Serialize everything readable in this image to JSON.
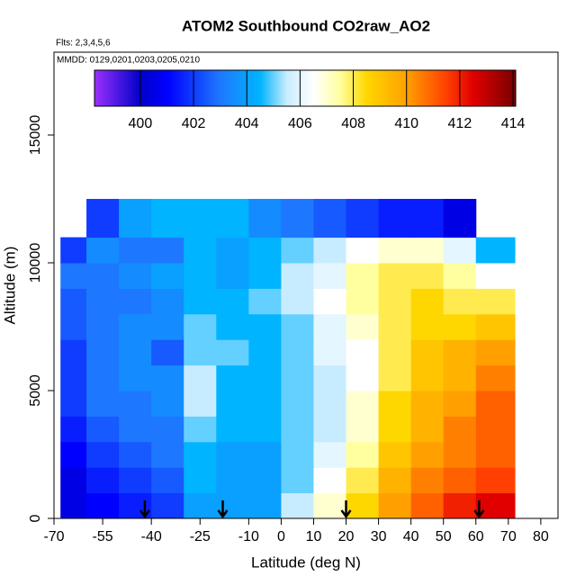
{
  "chart_data": {
    "type": "heatmap",
    "title": "ATOM2 Southbound CO2raw_AO2",
    "subtitle": "Flts: 2,3,4,5,6",
    "annotation": "MMDD: 0129,0201,0203,0205,0210",
    "xlabel": "Latitude (deg N)",
    "ylabel": "Altitude (m)",
    "xlim": [
      -70,
      85.3
    ],
    "ylim": [
      0,
      18240
    ],
    "xticks": [
      -70,
      -55,
      -40,
      -25,
      -10,
      0,
      10,
      20,
      30,
      40,
      50,
      60,
      70,
      80
    ],
    "yticks": [
      0,
      5000,
      10000,
      15000
    ],
    "xbins": [
      -68,
      -60,
      -50,
      -40,
      -30,
      -20,
      -10,
      0,
      10,
      20,
      30,
      40,
      50,
      60,
      72
    ],
    "ybins": [
      0,
      1000,
      2000,
      3000,
      4000,
      5000,
      6000,
      7000,
      8000,
      9000,
      10000,
      11000,
      12500
    ],
    "z": [
      [
        400.5,
        401,
        401.5,
        402,
        404,
        404,
        404,
        405.5,
        407,
        408.5,
        410,
        411,
        412,
        412.5
      ],
      [
        400.5,
        401.5,
        402,
        402.5,
        404.5,
        404,
        404,
        405,
        406.5,
        408,
        409.5,
        410.5,
        411,
        411.5
      ],
      [
        401,
        402,
        402.5,
        403,
        404.5,
        404,
        404,
        405,
        406,
        407.5,
        409,
        410,
        410.5,
        411
      ],
      [
        401.5,
        402.5,
        403,
        403,
        405,
        404.5,
        404.5,
        405,
        405.5,
        407,
        408.5,
        409.5,
        410.5,
        411
      ],
      [
        402,
        403,
        403,
        403.5,
        405.5,
        404.5,
        404.5,
        405,
        405.5,
        407,
        408.5,
        409.5,
        410,
        411
      ],
      [
        402,
        403,
        403.5,
        403.5,
        405.5,
        404.5,
        404.5,
        405,
        405.5,
        406.5,
        408,
        409,
        409.5,
        410.5
      ],
      [
        402,
        403,
        403.5,
        402.5,
        405,
        405,
        404.5,
        405,
        406,
        406.5,
        408,
        409,
        409.5,
        410
      ],
      [
        402.5,
        403,
        403.5,
        403.5,
        405,
        404.5,
        404.5,
        405,
        406,
        407,
        408,
        408.5,
        408.5,
        409
      ],
      [
        402.5,
        403,
        403,
        403.5,
        404.5,
        404.5,
        405,
        405.5,
        406.5,
        407.5,
        408,
        408.5,
        408,
        408
      ],
      [
        403,
        403,
        403.5,
        404,
        404.5,
        404,
        404.5,
        405.5,
        406,
        407.5,
        408,
        408,
        407.5,
        406.5
      ],
      [
        402,
        403.5,
        403,
        403,
        404.5,
        404,
        404.5,
        405,
        405.5,
        406.5,
        407,
        407,
        406,
        404.5
      ],
      [
        null,
        402,
        404,
        404.5,
        404.5,
        404.5,
        403.5,
        403,
        402.5,
        402,
        401.5,
        401.5,
        400.5,
        null
      ]
    ],
    "clim": [
      398.28,
      414.1
    ],
    "cticks": [
      400,
      402,
      404,
      406,
      408,
      410,
      412,
      414
    ],
    "colorscale": [
      [
        398.28,
        "#9b30ff"
      ],
      [
        400,
        "#0000c8"
      ],
      [
        401,
        "#0000ff"
      ],
      [
        403,
        "#1e78ff"
      ],
      [
        404.5,
        "#00b4ff"
      ],
      [
        405.5,
        "#c8ecff"
      ],
      [
        406.5,
        "#ffffff"
      ],
      [
        407.5,
        "#ffffa0"
      ],
      [
        408.5,
        "#ffd700"
      ],
      [
        410,
        "#ffa000"
      ],
      [
        411.5,
        "#ff4000"
      ],
      [
        412.5,
        "#e00000"
      ],
      [
        414.1,
        "#780000"
      ]
    ],
    "arrows": [
      -42,
      -18,
      20,
      61
    ]
  }
}
